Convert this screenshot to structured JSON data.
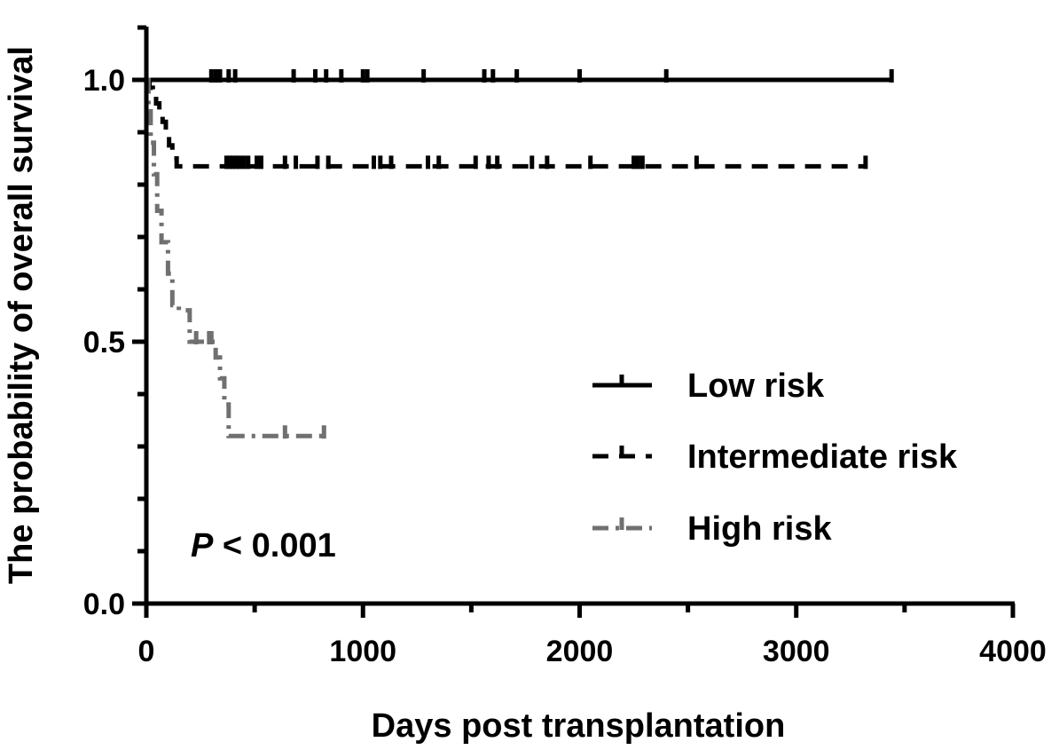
{
  "chart_data": {
    "type": "line",
    "subtype": "kaplan-meier",
    "title": "",
    "xlabel": "Days post transplantation",
    "ylabel": "The probability of overall survival",
    "xlim": [
      0,
      4000
    ],
    "ylim": [
      0,
      1.1
    ],
    "x_ticks": [
      0,
      1000,
      2000,
      3000,
      4000
    ],
    "x_tick_labels": [
      "0",
      "1000",
      "2000",
      "3000",
      "4000"
    ],
    "y_ticks": [
      0,
      0.5,
      1
    ],
    "y_tick_labels": [
      "0.0",
      "0.5",
      "1.0"
    ],
    "y_minor_step": 0.1,
    "x_minor_step": 500,
    "grid": false,
    "legend_position": "right-middle",
    "annotation": {
      "italic": "P",
      "rest": " < 0.001"
    },
    "series": [
      {
        "name": "Low risk",
        "color": "#000000",
        "style": "solid",
        "steps": [
          [
            0,
            1.0
          ]
        ],
        "end": 3440,
        "censors": [
          300,
          320,
          340,
          380,
          410,
          680,
          780,
          830,
          900,
          1000,
          1020,
          1280,
          1560,
          1600,
          1710,
          2000,
          2400,
          3440
        ]
      },
      {
        "name": "Intermediate risk",
        "color": "#000000",
        "style": "dashed",
        "steps": [
          [
            0,
            1.0
          ],
          [
            15,
            0.985
          ],
          [
            30,
            0.97
          ],
          [
            45,
            0.955
          ],
          [
            60,
            0.94
          ],
          [
            75,
            0.92
          ],
          [
            90,
            0.9
          ],
          [
            105,
            0.875
          ],
          [
            120,
            0.85
          ],
          [
            140,
            0.835
          ]
        ],
        "end": 3320,
        "censors": [
          370,
          385,
          400,
          415,
          430,
          450,
          470,
          510,
          530,
          640,
          690,
          790,
          840,
          1050,
          1080,
          1130,
          1300,
          1350,
          1520,
          1580,
          1620,
          1780,
          1850,
          2050,
          2250,
          2270,
          2290,
          2540,
          3320
        ]
      },
      {
        "name": "High risk",
        "color": "#707070",
        "style": "dash-dot",
        "steps": [
          [
            0,
            1.0
          ],
          [
            10,
            0.94
          ],
          [
            20,
            0.88
          ],
          [
            35,
            0.82
          ],
          [
            50,
            0.75
          ],
          [
            70,
            0.69
          ],
          [
            100,
            0.63
          ],
          [
            120,
            0.57
          ],
          [
            150,
            0.56
          ],
          [
            200,
            0.5
          ],
          [
            320,
            0.47
          ],
          [
            340,
            0.43
          ],
          [
            360,
            0.38
          ],
          [
            380,
            0.32
          ]
        ],
        "end": 820,
        "censors": [
          230,
          290,
          300,
          640,
          820
        ]
      }
    ]
  }
}
